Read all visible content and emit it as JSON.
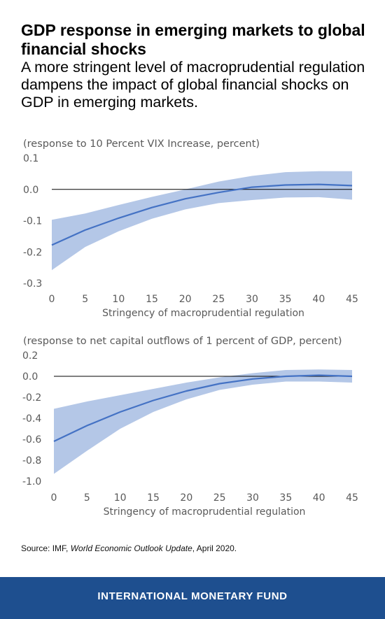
{
  "header": {
    "title": "GDP response in emerging markets to global financial shocks",
    "subtitle": "A more stringent level of macroprudential regulation dampens the impact of global financial shocks on GDP in emerging markets."
  },
  "source": {
    "prefix": "Source: IMF, ",
    "publication": "World Economic Outlook Update",
    "suffix": ", April 2020."
  },
  "footer": {
    "label": "INTERNATIONAL MONETARY FUND"
  },
  "colors": {
    "line": "#4472c4",
    "band": "#b4c7e7",
    "footer": "#1e4f8f",
    "axis_text": "#595959"
  },
  "chart_data": [
    {
      "type": "area",
      "title": "(response to 10 Percent VIX Increase, percent)",
      "xlabel": "Stringency of macroprudential regulation",
      "ylabel": "",
      "xlim": [
        0,
        45
      ],
      "ylim": [
        -0.3,
        0.1
      ],
      "xticks": [
        0,
        5,
        10,
        15,
        20,
        25,
        30,
        35,
        40,
        45
      ],
      "yticks": [
        0.1,
        0.0,
        -0.1,
        -0.2,
        -0.3
      ],
      "ytick_labels": [
        "0.1",
        "0.0",
        "-0.1",
        "-0.2",
        "-0.3"
      ],
      "zero_line": true,
      "grid": false,
      "x": [
        0,
        5,
        10,
        15,
        20,
        25,
        30,
        35,
        40,
        45
      ],
      "series": [
        {
          "values": [
            -0.178,
            -0.13,
            -0.092,
            -0.058,
            -0.03,
            -0.01,
            0.007,
            0.014,
            0.016,
            0.012
          ]
        },
        {
          "values": [
            -0.097,
            -0.077,
            -0.05,
            -0.024,
            0.0,
            0.025,
            0.043,
            0.055,
            0.058,
            0.058
          ]
        },
        {
          "values": [
            -0.258,
            -0.184,
            -0.134,
            -0.094,
            -0.064,
            -0.044,
            -0.034,
            -0.026,
            -0.025,
            -0.033
          ]
        }
      ]
    },
    {
      "type": "area",
      "title": "(response to net capital outflows of 1 percent of GDP, percent)",
      "xlabel": "Stringency of macroprudential regulation",
      "ylabel": "",
      "xlim": [
        0,
        45
      ],
      "ylim": [
        -1.0,
        0.2
      ],
      "xticks": [
        0,
        5,
        10,
        15,
        20,
        25,
        30,
        35,
        40,
        45
      ],
      "yticks": [
        0.2,
        0.0,
        -0.2,
        -0.4,
        -0.6,
        -0.8,
        -1.0
      ],
      "ytick_labels": [
        "0.2",
        "0.0",
        "-0.2",
        "-0.4",
        "-0.6",
        "-0.8",
        "-1.0"
      ],
      "zero_line": true,
      "grid": false,
      "x": [
        0,
        5,
        10,
        15,
        20,
        25,
        30,
        35,
        40,
        45
      ],
      "series": [
        {
          "values": [
            -0.62,
            -0.47,
            -0.34,
            -0.23,
            -0.14,
            -0.07,
            -0.025,
            0.0,
            0.01,
            0.0
          ]
        },
        {
          "values": [
            -0.31,
            -0.24,
            -0.18,
            -0.12,
            -0.06,
            -0.01,
            0.03,
            0.06,
            0.065,
            0.06
          ]
        },
        {
          "values": [
            -0.93,
            -0.71,
            -0.5,
            -0.34,
            -0.22,
            -0.13,
            -0.08,
            -0.05,
            -0.05,
            -0.06
          ]
        }
      ]
    }
  ]
}
